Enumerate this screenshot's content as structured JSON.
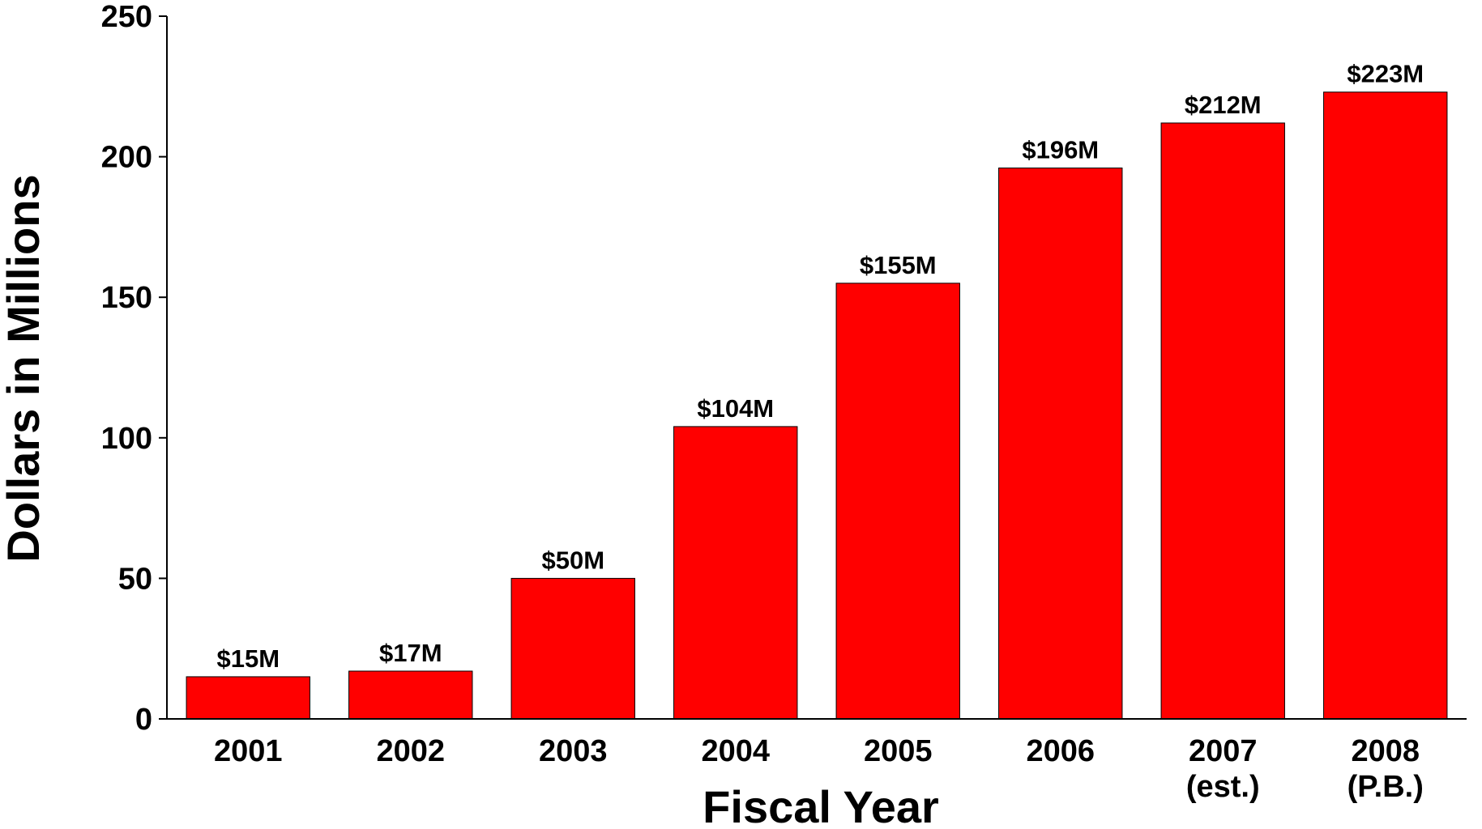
{
  "chart_data": {
    "type": "bar",
    "categories": [
      [
        "2001"
      ],
      [
        "2002"
      ],
      [
        "2003"
      ],
      [
        "2004"
      ],
      [
        "2005"
      ],
      [
        "2006"
      ],
      [
        "2007",
        "(est.)"
      ],
      [
        "2008",
        "(P.B.)"
      ]
    ],
    "values": [
      15,
      17,
      50,
      104,
      155,
      196,
      212,
      223
    ],
    "data_labels": [
      "$15M",
      "$17M",
      "$50M",
      "$104M",
      "$155M",
      "$196M",
      "$212M",
      "$223M"
    ],
    "xlabel": "Fiscal Year",
    "ylabel": "Dollars in Millions",
    "ylim": [
      0,
      250
    ],
    "yticks": [
      0,
      50,
      100,
      150,
      200,
      250
    ],
    "grid": false,
    "legend": "none",
    "bar_color": "#ff0000"
  }
}
